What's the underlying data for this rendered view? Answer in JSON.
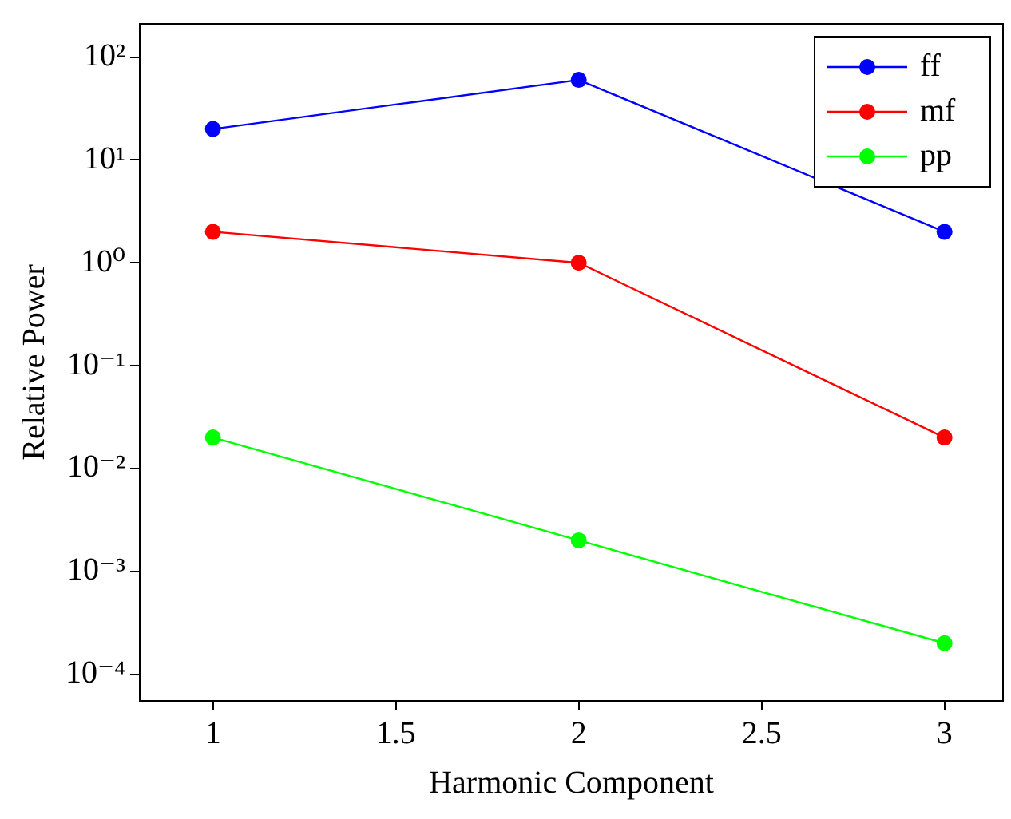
{
  "chart_data": {
    "type": "line",
    "xlabel": "Harmonic Component",
    "ylabel": "Relative Power",
    "x": [
      1,
      2,
      3
    ],
    "series": [
      {
        "name": "ff",
        "color": "#0000ff",
        "values": [
          20,
          60,
          2
        ]
      },
      {
        "name": "mf",
        "color": "#ff0000",
        "values": [
          2,
          1,
          0.02
        ]
      },
      {
        "name": "pp",
        "color": "#00ff00",
        "values": [
          0.02,
          0.002,
          0.0002
        ]
      }
    ],
    "log": "y",
    "xlim": [
      0.8,
      3.16
    ],
    "ylim": [
      5.5e-05,
      210
    ],
    "xticks": [
      1,
      1.5,
      2,
      2.5,
      3
    ],
    "yticks": [
      {
        "value": 0.0001,
        "label": "10⁻⁴"
      },
      {
        "value": 0.001,
        "label": "10⁻³"
      },
      {
        "value": 0.01,
        "label": "10⁻²"
      },
      {
        "value": 0.1,
        "label": "10⁻¹"
      },
      {
        "value": 1,
        "label": "10⁰"
      },
      {
        "value": 10,
        "label": "10¹"
      },
      {
        "value": 100,
        "label": "10²"
      }
    ],
    "grid": false,
    "legend": "top right",
    "marker": "circle",
    "line_style": "solid"
  }
}
